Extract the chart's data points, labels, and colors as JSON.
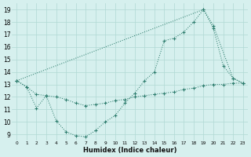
{
  "line1_x": [
    0,
    1,
    2,
    3,
    4,
    5,
    6,
    7,
    8,
    9,
    10,
    11,
    12,
    13,
    14,
    15,
    16,
    17,
    18,
    19,
    20,
    21,
    22,
    23
  ],
  "line1_y": [
    13.3,
    12.8,
    11.1,
    12.1,
    10.1,
    9.2,
    8.9,
    8.8,
    9.3,
    10.0,
    10.5,
    11.5,
    12.3,
    13.3,
    14.0,
    16.5,
    16.7,
    17.2,
    18.0,
    19.0,
    17.5,
    14.5,
    13.5,
    13.1
  ],
  "line2_x": [
    0,
    19,
    20,
    22,
    23
  ],
  "line2_y": [
    13.3,
    19.0,
    17.7,
    13.5,
    13.1
  ],
  "line3_x": [
    0,
    1,
    2,
    3,
    4,
    5,
    6,
    7,
    8,
    9,
    10,
    11,
    12,
    13,
    14,
    15,
    16,
    17,
    18,
    19,
    20,
    21,
    22,
    23
  ],
  "line3_y": [
    13.3,
    12.8,
    12.2,
    12.1,
    12.0,
    11.8,
    11.5,
    11.3,
    11.4,
    11.5,
    11.7,
    11.8,
    12.0,
    12.1,
    12.2,
    12.3,
    12.4,
    12.6,
    12.7,
    12.9,
    13.0,
    13.0,
    13.1,
    13.1
  ],
  "color": "#2e7d6e",
  "bg_color": "#d6f0ee",
  "grid_color": "#b0d8d4",
  "xlabel": "Humidex (Indice chaleur)",
  "xlim": [
    -0.5,
    23.5
  ],
  "ylim": [
    8.5,
    19.5
  ],
  "xticks": [
    0,
    1,
    2,
    3,
    4,
    5,
    6,
    7,
    8,
    9,
    10,
    11,
    12,
    13,
    14,
    15,
    16,
    17,
    18,
    19,
    20,
    21,
    22,
    23
  ],
  "yticks": [
    9,
    10,
    11,
    12,
    13,
    14,
    15,
    16,
    17,
    18,
    19
  ]
}
